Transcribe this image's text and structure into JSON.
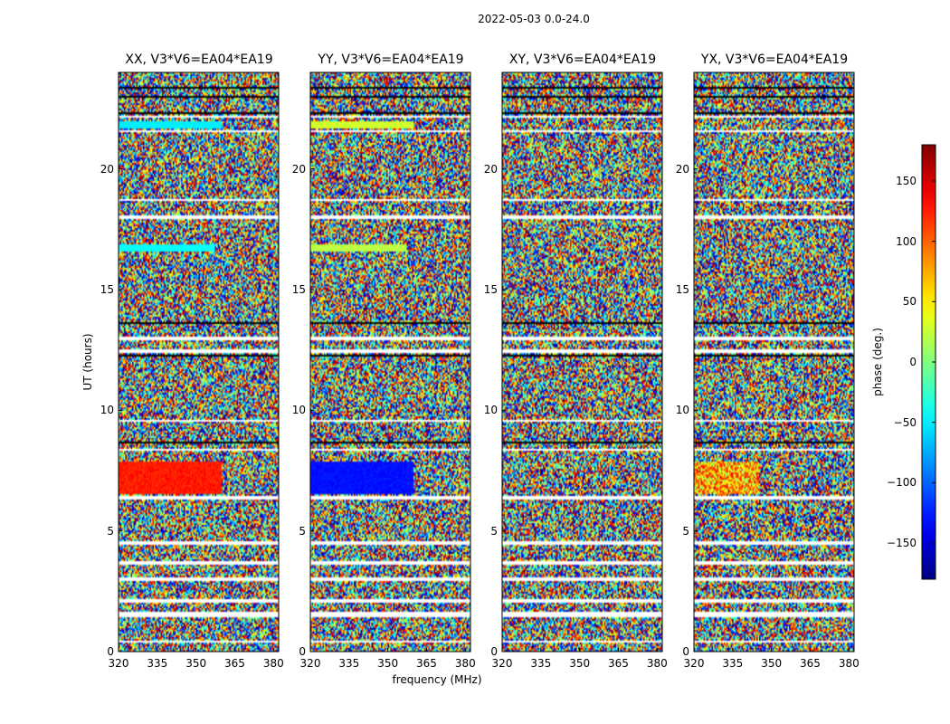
{
  "suptitle": "2022-05-03 0.0-24.0",
  "chart_data": {
    "type": "heatmap",
    "panels": [
      {
        "title": "XX, V3*V6=EA04*EA19"
      },
      {
        "title": "YY, V3*V6=EA04*EA19"
      },
      {
        "title": "XY, V3*V6=EA04*EA19"
      },
      {
        "title": "YX, V3*V6=EA04*EA19"
      }
    ],
    "xlabel": "frequency (MHz)",
    "ylabel": "UT (hours)",
    "xticks": [
      320,
      335,
      350,
      365,
      380
    ],
    "yticks": [
      0,
      5,
      10,
      15,
      20
    ],
    "xlim": [
      320,
      382
    ],
    "ylim": [
      0,
      24
    ],
    "colorbar": {
      "label": "phase (deg.)",
      "ticks": [
        150,
        100,
        50,
        0,
        -50,
        -100,
        -150
      ],
      "tick_labels": [
        "150",
        "100",
        "50",
        "0",
        "−50",
        "−100",
        "−150"
      ],
      "range": [
        -180,
        180
      ],
      "colormap": "jet"
    }
  }
}
